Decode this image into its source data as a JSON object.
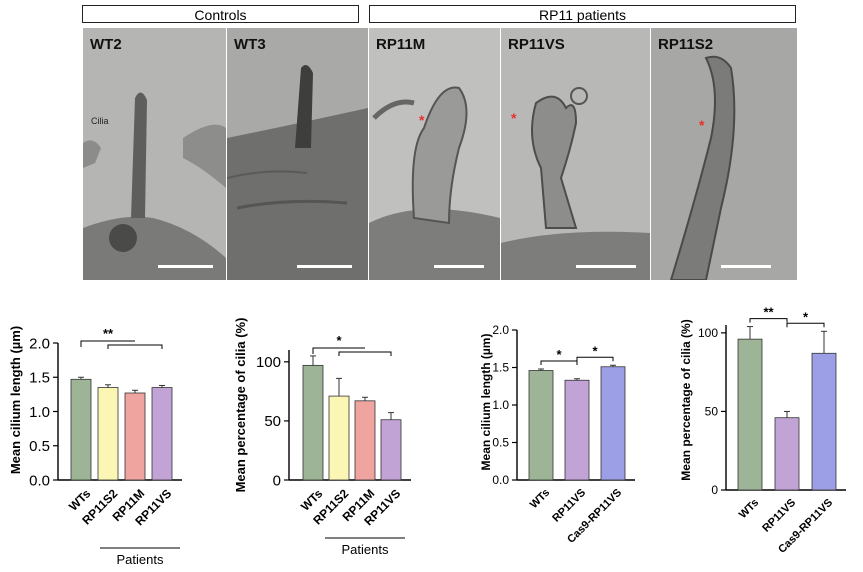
{
  "headers": {
    "controls": "Controls",
    "patients": "RP11 patients"
  },
  "micrographs": [
    {
      "label": "WT2",
      "annotation": "Cilia",
      "asterisk": false,
      "bg": "#b5b5b3"
    },
    {
      "label": "WT3",
      "annotation": "",
      "asterisk": false,
      "bg": "#a9a9a7"
    },
    {
      "label": "RP11M",
      "annotation": "",
      "asterisk": true,
      "bg": "#c0c0be"
    },
    {
      "label": "RP11VS",
      "annotation": "",
      "asterisk": true,
      "bg": "#b8b8b6"
    },
    {
      "label": "RP11S2",
      "annotation": "",
      "asterisk": true,
      "bg": "#a7a7a5"
    }
  ],
  "asterisk_symbol": "*",
  "asterisk_color": "#e8312a",
  "chart_data": [
    {
      "type": "bar",
      "ylabel": "Mean cilium length (µm)",
      "ylim": [
        0,
        2.0
      ],
      "yticks": [
        "0.0",
        "0.5",
        "1.0",
        "1.5",
        "2.0"
      ],
      "categories": [
        "WTs",
        "RP11S2",
        "RP11M",
        "RP11VS"
      ],
      "values": [
        1.47,
        1.35,
        1.27,
        1.35
      ],
      "errors": [
        0.03,
        0.04,
        0.04,
        0.03
      ],
      "colors": [
        "#9db596",
        "#fbf6b3",
        "#f0a4a0",
        "#c2a3d6"
      ],
      "group_label": "Patients",
      "significance": [
        {
          "text": "**",
          "from": 0,
          "to": [
            1,
            3
          ]
        }
      ]
    },
    {
      "type": "bar",
      "ylabel": "Mean percentage of cilia (%)",
      "ylim": [
        0,
        110
      ],
      "yticks": [
        "0",
        "50",
        "100"
      ],
      "categories": [
        "WTs",
        "RP11S2",
        "RP11M",
        "RP11VS"
      ],
      "values": [
        97,
        71,
        67,
        51
      ],
      "errors": [
        8,
        15,
        3,
        6
      ],
      "colors": [
        "#9db596",
        "#fbf6b3",
        "#f0a4a0",
        "#c2a3d6"
      ],
      "group_label": "Patients",
      "significance": [
        {
          "text": "*",
          "from": 0,
          "to": [
            1,
            3
          ]
        }
      ]
    },
    {
      "type": "bar",
      "ylabel": "Mean cilium length (µm)",
      "ylim": [
        0,
        2.0
      ],
      "yticks": [
        "0.0",
        "0.5",
        "1.0",
        "1.5",
        "2.0"
      ],
      "categories": [
        "WTs",
        "RP11VS",
        "Cas9-RP11VS"
      ],
      "values": [
        1.46,
        1.33,
        1.51
      ],
      "errors": [
        0.02,
        0.02,
        0.02
      ],
      "colors": [
        "#9db596",
        "#c2a3d6",
        "#9d9fe6"
      ],
      "significance": [
        {
          "text": "*",
          "pair": [
            0,
            1
          ]
        },
        {
          "text": "*",
          "pair": [
            1,
            2
          ]
        }
      ]
    },
    {
      "type": "bar",
      "ylabel": "Mean percentage of cilia (%)",
      "ylim": [
        0,
        105
      ],
      "yticks": [
        "0",
        "50",
        "100"
      ],
      "categories": [
        "WTs",
        "RP11VS",
        "Cas9-RP11VS"
      ],
      "values": [
        96,
        46,
        87
      ],
      "errors": [
        8,
        4,
        14
      ],
      "colors": [
        "#9db596",
        "#c2a3d6",
        "#9d9fe6"
      ],
      "significance": [
        {
          "text": "**",
          "pair": [
            0,
            1
          ]
        },
        {
          "text": "*",
          "pair": [
            1,
            2
          ]
        }
      ]
    }
  ]
}
